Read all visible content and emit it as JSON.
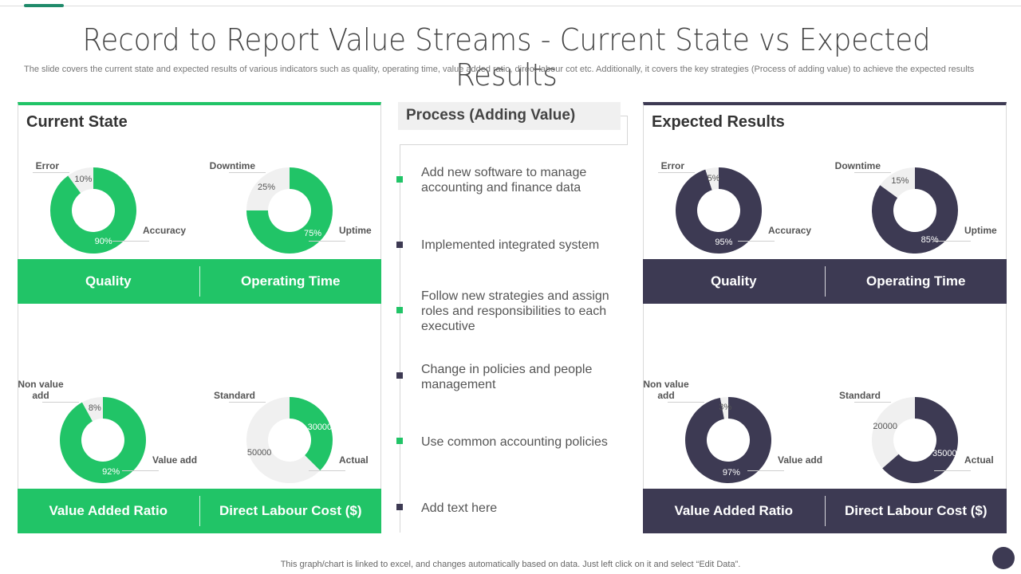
{
  "title": "Record to Report Value Streams - Current State vs Expected Results",
  "subtitle": "The slide covers the current state and expected results of various indicators such as quality, operating time, value added ratio, direct labour cot etc. Additionally, it covers the key strategies (Process of adding value) to achieve the expected results",
  "colors": {
    "current": "#21c467",
    "expected": "#3d3a53",
    "remainder": "#f0f0f0"
  },
  "process": {
    "title": "Process (Adding Value)",
    "items": [
      {
        "text": "Add new software to manage accounting and finance data",
        "color": "#21c467"
      },
      {
        "text": "Implemented  integrated system",
        "color": "#3d3a53"
      },
      {
        "text": "Follow new strategies and assign roles and responsibilities to each executive",
        "color": "#21c467"
      },
      {
        "text": "Change in policies and people management",
        "color": "#3d3a53"
      },
      {
        "text": "Use common accounting policies",
        "color": "#21c467"
      },
      {
        "text": "Add text here",
        "color": "#3d3a53"
      }
    ]
  },
  "footer": "This graph/chart is linked to excel,  and changes automatically based on data. Just left click on it and select “Edit Data”.",
  "chart_data": [
    {
      "type": "pie",
      "panel": "Current State",
      "title": "Quality",
      "categories": [
        "Accuracy",
        "Error"
      ],
      "values": [
        90,
        10
      ],
      "labels": [
        "90%",
        "10%"
      ]
    },
    {
      "type": "pie",
      "panel": "Current State",
      "title": "Operating Time",
      "categories": [
        "Uptime",
        "Downtime"
      ],
      "values": [
        75,
        25
      ],
      "labels": [
        "75%",
        "25%"
      ]
    },
    {
      "type": "pie",
      "panel": "Current State",
      "title": "Value Added Ratio",
      "categories": [
        "Value add",
        "Non value add"
      ],
      "values": [
        92,
        8
      ],
      "labels": [
        "92%",
        "8%"
      ]
    },
    {
      "type": "pie",
      "panel": "Current State",
      "title": "Direct Labour Cost ($)",
      "categories": [
        "Actual",
        "Standard"
      ],
      "values": [
        30000,
        50000
      ],
      "labels": [
        "30000",
        "50000"
      ]
    },
    {
      "type": "pie",
      "panel": "Expected  Results",
      "title": "Quality",
      "categories": [
        "Accuracy",
        "Error"
      ],
      "values": [
        95,
        5
      ],
      "labels": [
        "95%",
        "5%"
      ]
    },
    {
      "type": "pie",
      "panel": "Expected  Results",
      "title": "Operating Time",
      "categories": [
        "Uptime",
        "Downtime"
      ],
      "values": [
        85,
        15
      ],
      "labels": [
        "85%",
        "15%"
      ]
    },
    {
      "type": "pie",
      "panel": "Expected  Results",
      "title": "Value Added Ratio",
      "categories": [
        "Value add",
        "Non value add"
      ],
      "values": [
        97,
        3
      ],
      "labels": [
        "97%",
        "3%"
      ]
    },
    {
      "type": "pie",
      "panel": "Expected  Results",
      "title": "Direct Labour Cost ($)",
      "categories": [
        "Actual",
        "Standard"
      ],
      "values": [
        35000,
        20000
      ],
      "labels": [
        "35000",
        "20000"
      ]
    }
  ],
  "panels": {
    "current": {
      "title": "Current State"
    },
    "expected": {
      "title": "Expected  Results"
    }
  }
}
